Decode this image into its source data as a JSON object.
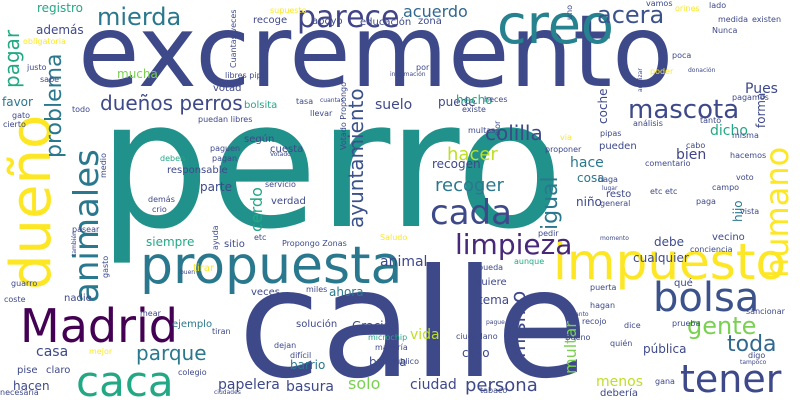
{
  "wordcloud": {
    "words": [
      {
        "text": "perro",
        "color": "#21918c"
      },
      {
        "text": "calle",
        "color": "#3e4989"
      },
      {
        "text": "excremento",
        "color": "#3e4989"
      },
      {
        "text": "dueño",
        "color": "#fde725"
      },
      {
        "text": "propuesta",
        "color": "#2a788e"
      },
      {
        "text": "impuesto",
        "color": "#fde725"
      },
      {
        "text": "caca",
        "color": "#22a884"
      },
      {
        "text": "Madrid",
        "color": "#440154"
      },
      {
        "text": "creo",
        "color": "#26828e"
      },
      {
        "text": "bolsa",
        "color": "#3b528b"
      },
      {
        "text": "animales",
        "color": "#2a788e"
      },
      {
        "text": "tener",
        "color": "#3e4989"
      },
      {
        "text": "cada",
        "color": "#3e4989"
      },
      {
        "text": "parece",
        "color": "#414487"
      },
      {
        "text": "limpieza",
        "color": "#482878"
      },
      {
        "text": "humano",
        "color": "#fde725"
      },
      {
        "text": "mascota",
        "color": "#3e4989"
      },
      {
        "text": "acera",
        "color": "#3b528b"
      },
      {
        "text": "mierda",
        "color": "#2a788e"
      },
      {
        "text": "pagar",
        "color": "#22a884"
      },
      {
        "text": "gente",
        "color": "#7ad151"
      },
      {
        "text": "toda",
        "color": "#31688e"
      },
      {
        "text": "problema",
        "color": "#2a788e"
      },
      {
        "text": "ayuntamiento",
        "color": "#3b528b"
      },
      {
        "text": "parque",
        "color": "#2a788e"
      },
      {
        "text": "mismo",
        "color": "#3e4989"
      },
      {
        "text": "igual",
        "color": "#2a788e"
      },
      {
        "text": "dueños perros",
        "color": "#3e4989"
      },
      {
        "text": "colilla",
        "color": "#3e4989"
      },
      {
        "text": "recoger",
        "color": "#2a788e"
      },
      {
        "text": "acuerdo",
        "color": "#31688e"
      },
      {
        "text": "hacer",
        "color": "#bddf26"
      },
      {
        "text": "persona",
        "color": "#3e4989"
      },
      {
        "text": "cerdo",
        "color": "#22a884"
      },
      {
        "text": "papelera",
        "color": "#3e4989"
      },
      {
        "text": "solo",
        "color": "#7ad151"
      },
      {
        "text": "ciudad",
        "color": "#3e4989"
      },
      {
        "text": "basura",
        "color": "#3e4989"
      },
      {
        "text": "casa",
        "color": "#3e4989"
      },
      {
        "text": "vida",
        "color": "#bddf26"
      },
      {
        "text": "multar",
        "color": "#7ad151"
      },
      {
        "text": "bien",
        "color": "#414487"
      },
      {
        "text": "hace",
        "color": "#2a788e"
      },
      {
        "text": "dicho",
        "color": "#22a884"
      },
      {
        "text": "forma",
        "color": "#3e4989"
      },
      {
        "text": "animal",
        "color": "#3e4989"
      },
      {
        "text": "Pues",
        "color": "#3e4989"
      },
      {
        "text": "suelo",
        "color": "#3e4989"
      },
      {
        "text": "coche",
        "color": "#3e4989"
      },
      {
        "text": "barrio",
        "color": "#2a788e"
      },
      {
        "text": "hijo",
        "color": "#2a788e"
      },
      {
        "text": "menos",
        "color": "#bddf26"
      },
      {
        "text": "pública",
        "color": "#3e4989"
      },
      {
        "text": "además",
        "color": "#3e4989"
      },
      {
        "text": "registro",
        "color": "#22a884"
      },
      {
        "text": "favor",
        "color": "#2a788e"
      },
      {
        "text": "mucha",
        "color": "#7ad151"
      },
      {
        "text": "siempre",
        "color": "#22a884"
      },
      {
        "text": "parte",
        "color": "#3e4989"
      },
      {
        "text": "cosa",
        "color": "#2a788e"
      },
      {
        "text": "puede",
        "color": "#3e4989"
      },
      {
        "text": "niño",
        "color": "#3e4989"
      },
      {
        "text": "debe",
        "color": "#3e4989"
      },
      {
        "text": "ahora",
        "color": "#2a788e"
      },
      {
        "text": "tema",
        "color": "#3e4989"
      },
      {
        "text": "caso",
        "color": "#3e4989"
      },
      {
        "text": "buena",
        "color": "#3e4989"
      },
      {
        "text": "Gracias",
        "color": "#3e4989"
      },
      {
        "text": "solución",
        "color": "#3e4989"
      },
      {
        "text": "ejemplo",
        "color": "#2a788e"
      },
      {
        "text": "veces",
        "color": "#3e4989"
      },
      {
        "text": "nadie",
        "color": "#3e4989"
      },
      {
        "text": "hacen",
        "color": "#3e4989"
      },
      {
        "text": "claro",
        "color": "#3e4989"
      },
      {
        "text": "pise",
        "color": "#3e4989"
      },
      {
        "text": "existe",
        "color": "#3e4989"
      },
      {
        "text": "cualquier",
        "color": "#3e4989"
      },
      {
        "text": "quiere",
        "color": "#3e4989"
      },
      {
        "text": "recogen",
        "color": "#3e4989"
      },
      {
        "text": "hecho",
        "color": "#22a884"
      },
      {
        "text": "según",
        "color": "#3e4989"
      },
      {
        "text": "responsable",
        "color": "#3e4989"
      },
      {
        "text": "verdad",
        "color": "#3e4989"
      },
      {
        "text": "servicio",
        "color": "#3e4989"
      },
      {
        "text": "multas",
        "color": "#3e4989"
      },
      {
        "text": "heces",
        "color": "#3e4989"
      },
      {
        "text": "votad",
        "color": "#3e4989"
      },
      {
        "text": "apoyo",
        "color": "#3e4989"
      },
      {
        "text": "educación",
        "color": "#3e4989"
      },
      {
        "text": "zona",
        "color": "#3e4989"
      },
      {
        "text": "recoge",
        "color": "#3e4989"
      },
      {
        "text": "supuesto",
        "color": "#fde725"
      },
      {
        "text": "todo",
        "color": "#3e4989"
      },
      {
        "text": "vamos",
        "color": "#3e4989"
      },
      {
        "text": "tanto",
        "color": "#3e4989"
      },
      {
        "text": "mear",
        "color": "#3e4989"
      },
      {
        "text": "tirar",
        "color": "#fde725"
      },
      {
        "text": "tiran",
        "color": "#3e4989"
      },
      {
        "text": "mejor",
        "color": "#fde725"
      },
      {
        "text": "colegio",
        "color": "#3e4989"
      },
      {
        "text": "sitio",
        "color": "#3e4989"
      },
      {
        "text": "etc",
        "color": "#3e4989"
      },
      {
        "text": "pueden",
        "color": "#3e4989"
      },
      {
        "text": "vecino",
        "color": "#3e4989"
      },
      {
        "text": "conciencia",
        "color": "#3e4989"
      },
      {
        "text": "resto",
        "color": "#3e4989"
      },
      {
        "text": "cuesta",
        "color": "#3e4989"
      },
      {
        "text": "qué",
        "color": "#3e4989"
      },
      {
        "text": "sancionar",
        "color": "#3e4989"
      },
      {
        "text": "Bueno",
        "color": "#3e4989"
      },
      {
        "text": "ciudadano",
        "color": "#3e4989"
      },
      {
        "text": "recojo",
        "color": "#3e4989"
      },
      {
        "text": "miles",
        "color": "#3e4989"
      },
      {
        "text": "Saludo",
        "color": "#fde725"
      },
      {
        "text": "Propongo Zonas",
        "color": "#3e4989"
      },
      {
        "text": "puedan libres",
        "color": "#3e4989"
      },
      {
        "text": "libres pipi",
        "color": "#3e4989"
      },
      {
        "text": "bolsita",
        "color": "#22a884"
      },
      {
        "text": "llevar",
        "color": "#3e4989"
      },
      {
        "text": "tasa",
        "color": "#3e4989"
      },
      {
        "text": "cuantas",
        "color": "#3e4989"
      },
      {
        "text": "pagamos",
        "color": "#3e4989"
      },
      {
        "text": "misma",
        "color": "#3e4989"
      },
      {
        "text": "hacemos",
        "color": "#3e4989"
      },
      {
        "text": "voto",
        "color": "#3e4989"
      },
      {
        "text": "campo",
        "color": "#3e4989"
      },
      {
        "text": "comentario",
        "color": "#3e4989"
      },
      {
        "text": "paga",
        "color": "#3e4989"
      },
      {
        "text": "general",
        "color": "#3e4989"
      },
      {
        "text": "lugar",
        "color": "#3e4989"
      },
      {
        "text": "haga",
        "color": "#3e4989"
      },
      {
        "text": "proponer",
        "color": "#3e4989"
      },
      {
        "text": "análisis",
        "color": "#3e4989"
      },
      {
        "text": "pipas",
        "color": "#3e4989"
      },
      {
        "text": "cabo",
        "color": "#3e4989"
      },
      {
        "text": "poca",
        "color": "#3e4989"
      },
      {
        "text": "poder",
        "color": "#fde725"
      },
      {
        "text": "medida",
        "color": "#3e4989"
      },
      {
        "text": "existen",
        "color": "#3e4989"
      },
      {
        "text": "lado",
        "color": "#3e4989"
      },
      {
        "text": "orines",
        "color": "#fde725"
      },
      {
        "text": "Nunca",
        "color": "#3e4989"
      },
      {
        "text": "sabe",
        "color": "#3e4989"
      },
      {
        "text": "justo",
        "color": "#3e4989"
      },
      {
        "text": "obligatoria",
        "color": "#fde725"
      },
      {
        "text": "gato",
        "color": "#3e4989"
      },
      {
        "text": "cierto",
        "color": "#3e4989"
      },
      {
        "text": "deben",
        "color": "#22a884"
      },
      {
        "text": "pagan",
        "color": "#3e4989"
      },
      {
        "text": "paguen",
        "color": "#3e4989"
      },
      {
        "text": "Votado",
        "color": "#3e4989"
      },
      {
        "text": "medio",
        "color": "#3e4989"
      },
      {
        "text": "demás",
        "color": "#3e4989"
      },
      {
        "text": "crio",
        "color": "#3e4989"
      },
      {
        "text": "pasear",
        "color": "#3e4989"
      },
      {
        "text": "también",
        "color": "#3e4989"
      },
      {
        "text": "gasto",
        "color": "#3e4989"
      },
      {
        "text": "guarro",
        "color": "#3e4989"
      },
      {
        "text": "coste",
        "color": "#3e4989"
      },
      {
        "text": "necesaria",
        "color": "#3e4989"
      },
      {
        "text": "ciudades",
        "color": "#3e4989"
      },
      {
        "text": "días",
        "color": "#3e4989"
      },
      {
        "text": "dejan",
        "color": "#3e4989"
      },
      {
        "text": "difícil",
        "color": "#3e4989"
      },
      {
        "text": "mayoría",
        "color": "#3e4989"
      },
      {
        "text": "público",
        "color": "#3e4989"
      },
      {
        "text": "microchip",
        "color": "#22a884"
      },
      {
        "text": "pague",
        "color": "#3e4989"
      },
      {
        "text": "hagan",
        "color": "#3e4989"
      },
      {
        "text": "cuanto",
        "color": "#3e4989"
      },
      {
        "text": "dice",
        "color": "#3e4989"
      },
      {
        "text": "puerta",
        "color": "#3e4989"
      },
      {
        "text": "prueba",
        "color": "#3e4989"
      },
      {
        "text": "quién",
        "color": "#3e4989"
      },
      {
        "text": "tabaco",
        "color": "#3e4989"
      },
      {
        "text": "gana",
        "color": "#3e4989"
      },
      {
        "text": "debería",
        "color": "#3e4989"
      },
      {
        "text": "digo",
        "color": "#3e4989"
      },
      {
        "text": "tampoco",
        "color": "#3e4989"
      },
      {
        "text": "aunque",
        "color": "#22a884"
      },
      {
        "text": "pueda",
        "color": "#3e4989"
      },
      {
        "text": "pedir",
        "color": "#3e4989"
      },
      {
        "text": "momento",
        "color": "#3e4989"
      },
      {
        "text": "vista",
        "color": "#3e4989"
      },
      {
        "text": "olor",
        "color": "#3e4989"
      },
      {
        "text": "ayuda",
        "color": "#3e4989"
      },
      {
        "text": "buen",
        "color": "#3e4989"
      },
      {
        "text": "información",
        "color": "#3e4989"
      },
      {
        "text": "por",
        "color": "#3e4989"
      },
      {
        "text": "analizar",
        "color": "#3e4989"
      },
      {
        "text": "Cuantas veces",
        "color": "#3e4989"
      },
      {
        "text": "uno",
        "color": "#3e4989"
      },
      {
        "text": "Votado Propongo",
        "color": "#3e4989"
      },
      {
        "text": "donación",
        "color": "#3e4989"
      },
      {
        "text": "via",
        "color": "#fde725"
      },
      {
        "text": "etc etc",
        "color": "#3e4989"
      }
    ]
  }
}
